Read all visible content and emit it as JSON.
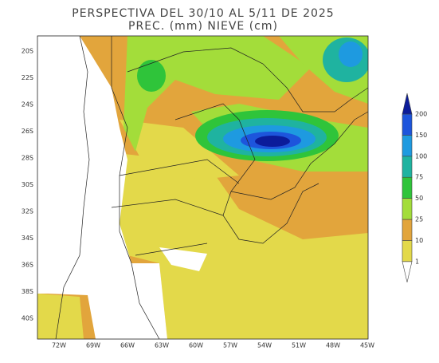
{
  "title": [
    "PERSPECTIVA DEL 30/10 AL 5/11 DE 2025",
    "PREC. (mm) NIEVE (cm)"
  ],
  "lat_labels": [
    "20S",
    "22S",
    "24S",
    "26S",
    "28S",
    "30S",
    "32S",
    "34S",
    "36S",
    "38S",
    "40S"
  ],
  "lon_labels": [
    "72W",
    "69W",
    "66W",
    "63W",
    "60W",
    "57W",
    "54W",
    "51W",
    "48W",
    "45W"
  ],
  "legend": {
    "levels": [
      "1",
      "10",
      "25",
      "50",
      "75",
      "100",
      "150",
      "200"
    ],
    "colors": [
      "#ffffff",
      "#e3d94a",
      "#e2a53c",
      "#a3dd3a",
      "#2fc43a",
      "#1fb3a0",
      "#1e9ae0",
      "#1d55dc",
      "#0b1c9a"
    ]
  }
}
